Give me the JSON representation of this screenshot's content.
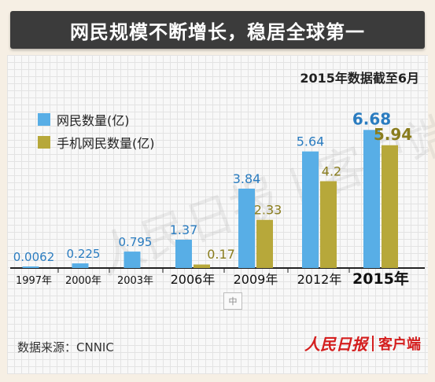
{
  "title": "网民规模不断增长，稳居全球第一",
  "note": "2015年数据截至6月",
  "source": "数据来源：CNNIC",
  "brand": {
    "logo": "人民日报",
    "name": "客户端"
  },
  "watermark": "人民日报 | 客户端",
  "zoom_label": "中",
  "colors": {
    "internet": "#58aee6",
    "mobile": "#b7a83a",
    "value_blue": "#2a7cc0",
    "value_olive": "#8a7d1e"
  },
  "chart_data": {
    "type": "bar",
    "categories": [
      "1997年",
      "2000年",
      "2003年",
      "2006年",
      "2009年",
      "2012年",
      "2015年"
    ],
    "series": [
      {
        "name": "网民数量(亿)",
        "values": [
          0.0062,
          0.225,
          0.795,
          1.37,
          3.84,
          5.64,
          6.68
        ],
        "labels": [
          "0.0062",
          "0.225",
          "0.795",
          "1.37",
          "3.84",
          "5.64",
          "6.68"
        ]
      },
      {
        "name": "手机网民数量(亿)",
        "values": [
          null,
          null,
          null,
          0.17,
          2.33,
          4.2,
          5.94
        ],
        "labels": [
          "",
          "",
          "",
          "0.17",
          "2.33",
          "4.2",
          "5.94"
        ]
      }
    ],
    "ylim": [
      0,
      7
    ],
    "title": "网民规模不断增长，稳居全球第一"
  }
}
